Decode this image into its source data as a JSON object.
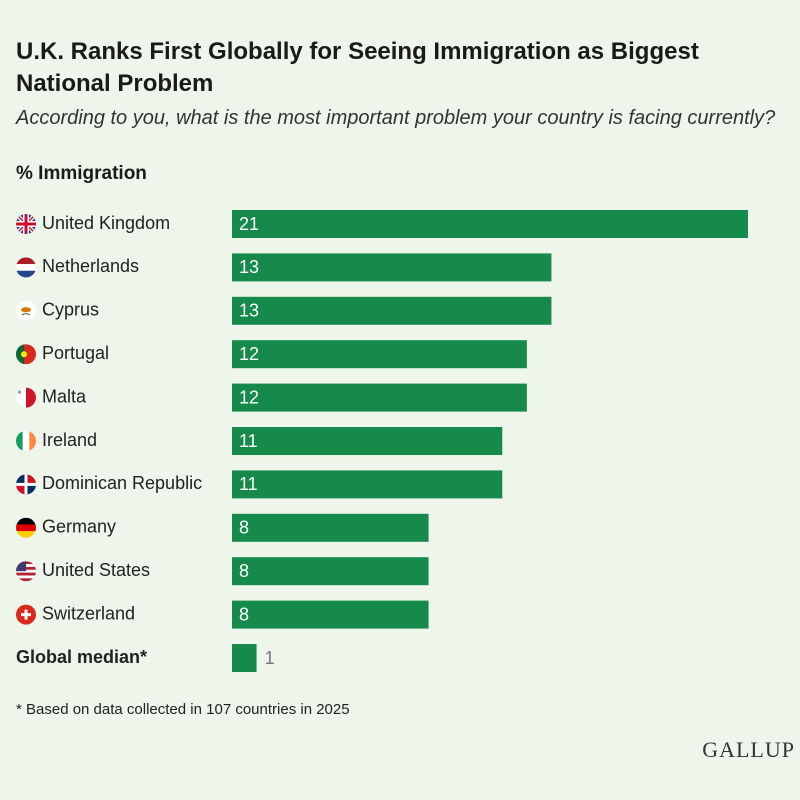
{
  "chart_data": {
    "type": "bar",
    "orientation": "horizontal",
    "title": "U.K. Ranks First Globally for Seeing Immigration as Biggest National Problem",
    "subtitle": "According to you, what is the most important problem your country is facing currently?",
    "value_axis_label": "% Immigration",
    "categories": [
      "United Kingdom",
      "Netherlands",
      "Cyprus",
      "Portugal",
      "Malta",
      "Ireland",
      "Dominican Republic",
      "Germany",
      "United States",
      "Switzerland"
    ],
    "values": [
      21,
      13,
      13,
      12,
      12,
      11,
      11,
      8,
      8,
      8
    ],
    "color": "#168a4b",
    "median": {
      "label": "Global median*",
      "value": 1
    },
    "xlim": [
      0,
      21
    ],
    "footnote": "* Based on data collected in 107 countries in 2025",
    "source": "GALLUP"
  }
}
